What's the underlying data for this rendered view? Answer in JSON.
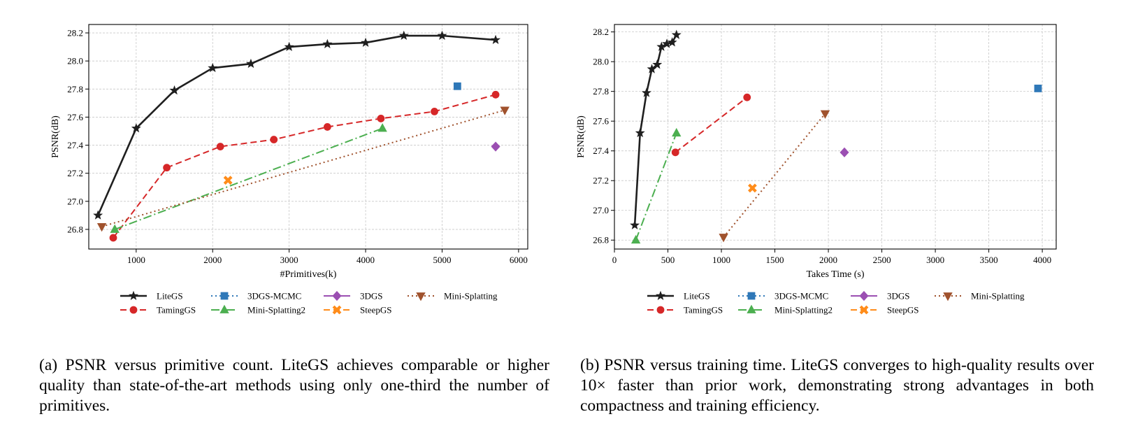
{
  "legend_order": [
    "LiteGS",
    "3DGS-MCMC",
    "3DGS",
    "Mini-Splatting",
    "TamingGS",
    "Mini-Splatting2",
    "SteepGS"
  ],
  "styles": {
    "LiteGS": {
      "color": "#1f1f1f",
      "marker": "star",
      "dash": "",
      "width": 2.6
    },
    "TamingGS": {
      "color": "#d62728",
      "marker": "circle",
      "dash": "9,5",
      "width": 2
    },
    "3DGS-MCMC": {
      "color": "#2f78b8",
      "marker": "square",
      "dash": "2,4",
      "width": 2
    },
    "Mini-Splatting2": {
      "color": "#4caf50",
      "marker": "triangle-up",
      "dash": "12,4,2,4",
      "width": 2
    },
    "3DGS": {
      "color": "#9b4fb2",
      "marker": "diamond",
      "dash": "",
      "width": 2
    },
    "SteepGS": {
      "color": "#ff8c1a",
      "marker": "x-filled",
      "dash": "9,5",
      "width": 2
    },
    "Mini-Splatting": {
      "color": "#a0522d",
      "marker": "triangle-down",
      "dash": "2,4",
      "width": 2
    }
  },
  "chart_data": [
    {
      "type": "line",
      "xlabel": "#Primitives(k)",
      "ylabel": "PSNR(dB)",
      "xlim": [
        380,
        6120
      ],
      "ylim": [
        26.66,
        28.26
      ],
      "xticks": [
        1000,
        2000,
        3000,
        4000,
        5000,
        6000
      ],
      "yticks": [
        26.8,
        27.0,
        27.2,
        27.4,
        27.6,
        27.8,
        28.0,
        28.2
      ],
      "grid": true,
      "legend_position": "below",
      "series": [
        {
          "name": "LiteGS",
          "x": [
            500,
            1000,
            1500,
            2000,
            2500,
            3000,
            3500,
            4000,
            4500,
            5000,
            5700
          ],
          "y": [
            26.9,
            27.52,
            27.79,
            27.95,
            27.98,
            28.1,
            28.12,
            28.13,
            28.18,
            28.18,
            28.15
          ]
        },
        {
          "name": "TamingGS",
          "x": [
            700,
            1400,
            2100,
            2800,
            3500,
            4200,
            4900,
            5700
          ],
          "y": [
            26.74,
            27.24,
            27.39,
            27.44,
            27.53,
            27.59,
            27.64,
            27.76
          ]
        },
        {
          "name": "3DGS-MCMC",
          "x": [
            5200
          ],
          "y": [
            27.82
          ]
        },
        {
          "name": "Mini-Splatting2",
          "x": [
            720,
            4220
          ],
          "y": [
            26.8,
            27.52
          ]
        },
        {
          "name": "3DGS",
          "x": [
            5700
          ],
          "y": [
            27.39
          ]
        },
        {
          "name": "SteepGS",
          "x": [
            2200
          ],
          "y": [
            27.15
          ]
        },
        {
          "name": "Mini-Splatting",
          "x": [
            550,
            5820
          ],
          "y": [
            26.82,
            27.65
          ]
        }
      ]
    },
    {
      "type": "line",
      "xlabel": "Takes Time (s)",
      "ylabel": "PSNR(dB)",
      "xlim": [
        0,
        4130
      ],
      "ylim": [
        26.74,
        28.25
      ],
      "xticks": [
        0,
        500,
        1000,
        1500,
        2000,
        2500,
        3000,
        3500,
        4000
      ],
      "yticks": [
        26.8,
        27.0,
        27.2,
        27.4,
        27.6,
        27.8,
        28.0,
        28.2
      ],
      "grid": true,
      "legend_position": "below",
      "series": [
        {
          "name": "LiteGS",
          "x": [
            190,
            240,
            300,
            350,
            400,
            440,
            490,
            540,
            580
          ],
          "y": [
            26.9,
            27.52,
            27.79,
            27.95,
            27.98,
            28.1,
            28.12,
            28.13,
            28.18
          ]
        },
        {
          "name": "TamingGS",
          "x": [
            570,
            1240
          ],
          "y": [
            27.39,
            27.76
          ]
        },
        {
          "name": "3DGS-MCMC",
          "x": [
            3960
          ],
          "y": [
            27.82
          ]
        },
        {
          "name": "Mini-Splatting2",
          "x": [
            200,
            580
          ],
          "y": [
            26.8,
            27.52
          ]
        },
        {
          "name": "3DGS",
          "x": [
            2150
          ],
          "y": [
            27.39
          ]
        },
        {
          "name": "SteepGS",
          "x": [
            1290
          ],
          "y": [
            27.15
          ]
        },
        {
          "name": "Mini-Splatting",
          "x": [
            1020,
            1970
          ],
          "y": [
            26.82,
            27.65
          ]
        }
      ]
    }
  ],
  "captions": {
    "a": "(a) PSNR versus primitive count. LiteGS achieves comparable or higher quality than state-of-the-art methods using only one-third the number of primitives.",
    "b": "(b) PSNR versus training time. LiteGS converges to high-quality results over 10× faster than prior work, demonstrating strong advantages in both compactness and training efficiency."
  }
}
